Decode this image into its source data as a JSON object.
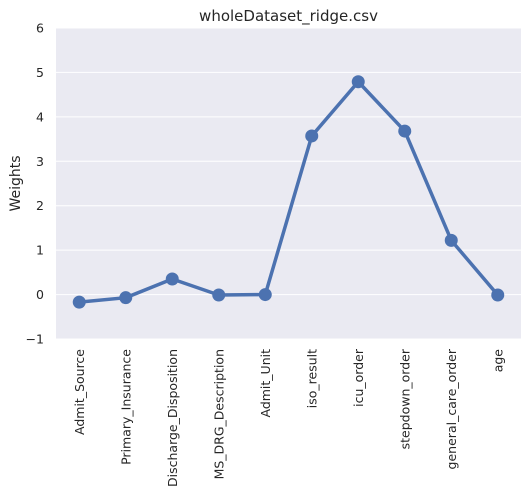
{
  "chart_data": {
    "type": "line",
    "title": "wholeDataset_ridge.csv",
    "xlabel": "",
    "ylabel": "Weights",
    "categories": [
      "Admit_Source",
      "Primary_Insurance",
      "Discharge_Disposition",
      "MS_DRG_Description",
      "Admit_Unit",
      "iso_result",
      "icu_order",
      "stepdown_order",
      "general_care_order",
      "age"
    ],
    "series": [
      {
        "values": [
          -0.17,
          -0.07,
          0.35,
          -0.01,
          0.0,
          3.57,
          4.79,
          3.68,
          1.22,
          -0.01
        ]
      }
    ],
    "ylim": [
      -1,
      6
    ],
    "yticks": [
      -1,
      0,
      1,
      2,
      3,
      4,
      5,
      6
    ],
    "grid": true,
    "colors": {
      "line": "#4c72b0",
      "background": "#eaeaf2",
      "grid": "#ffffff"
    }
  }
}
